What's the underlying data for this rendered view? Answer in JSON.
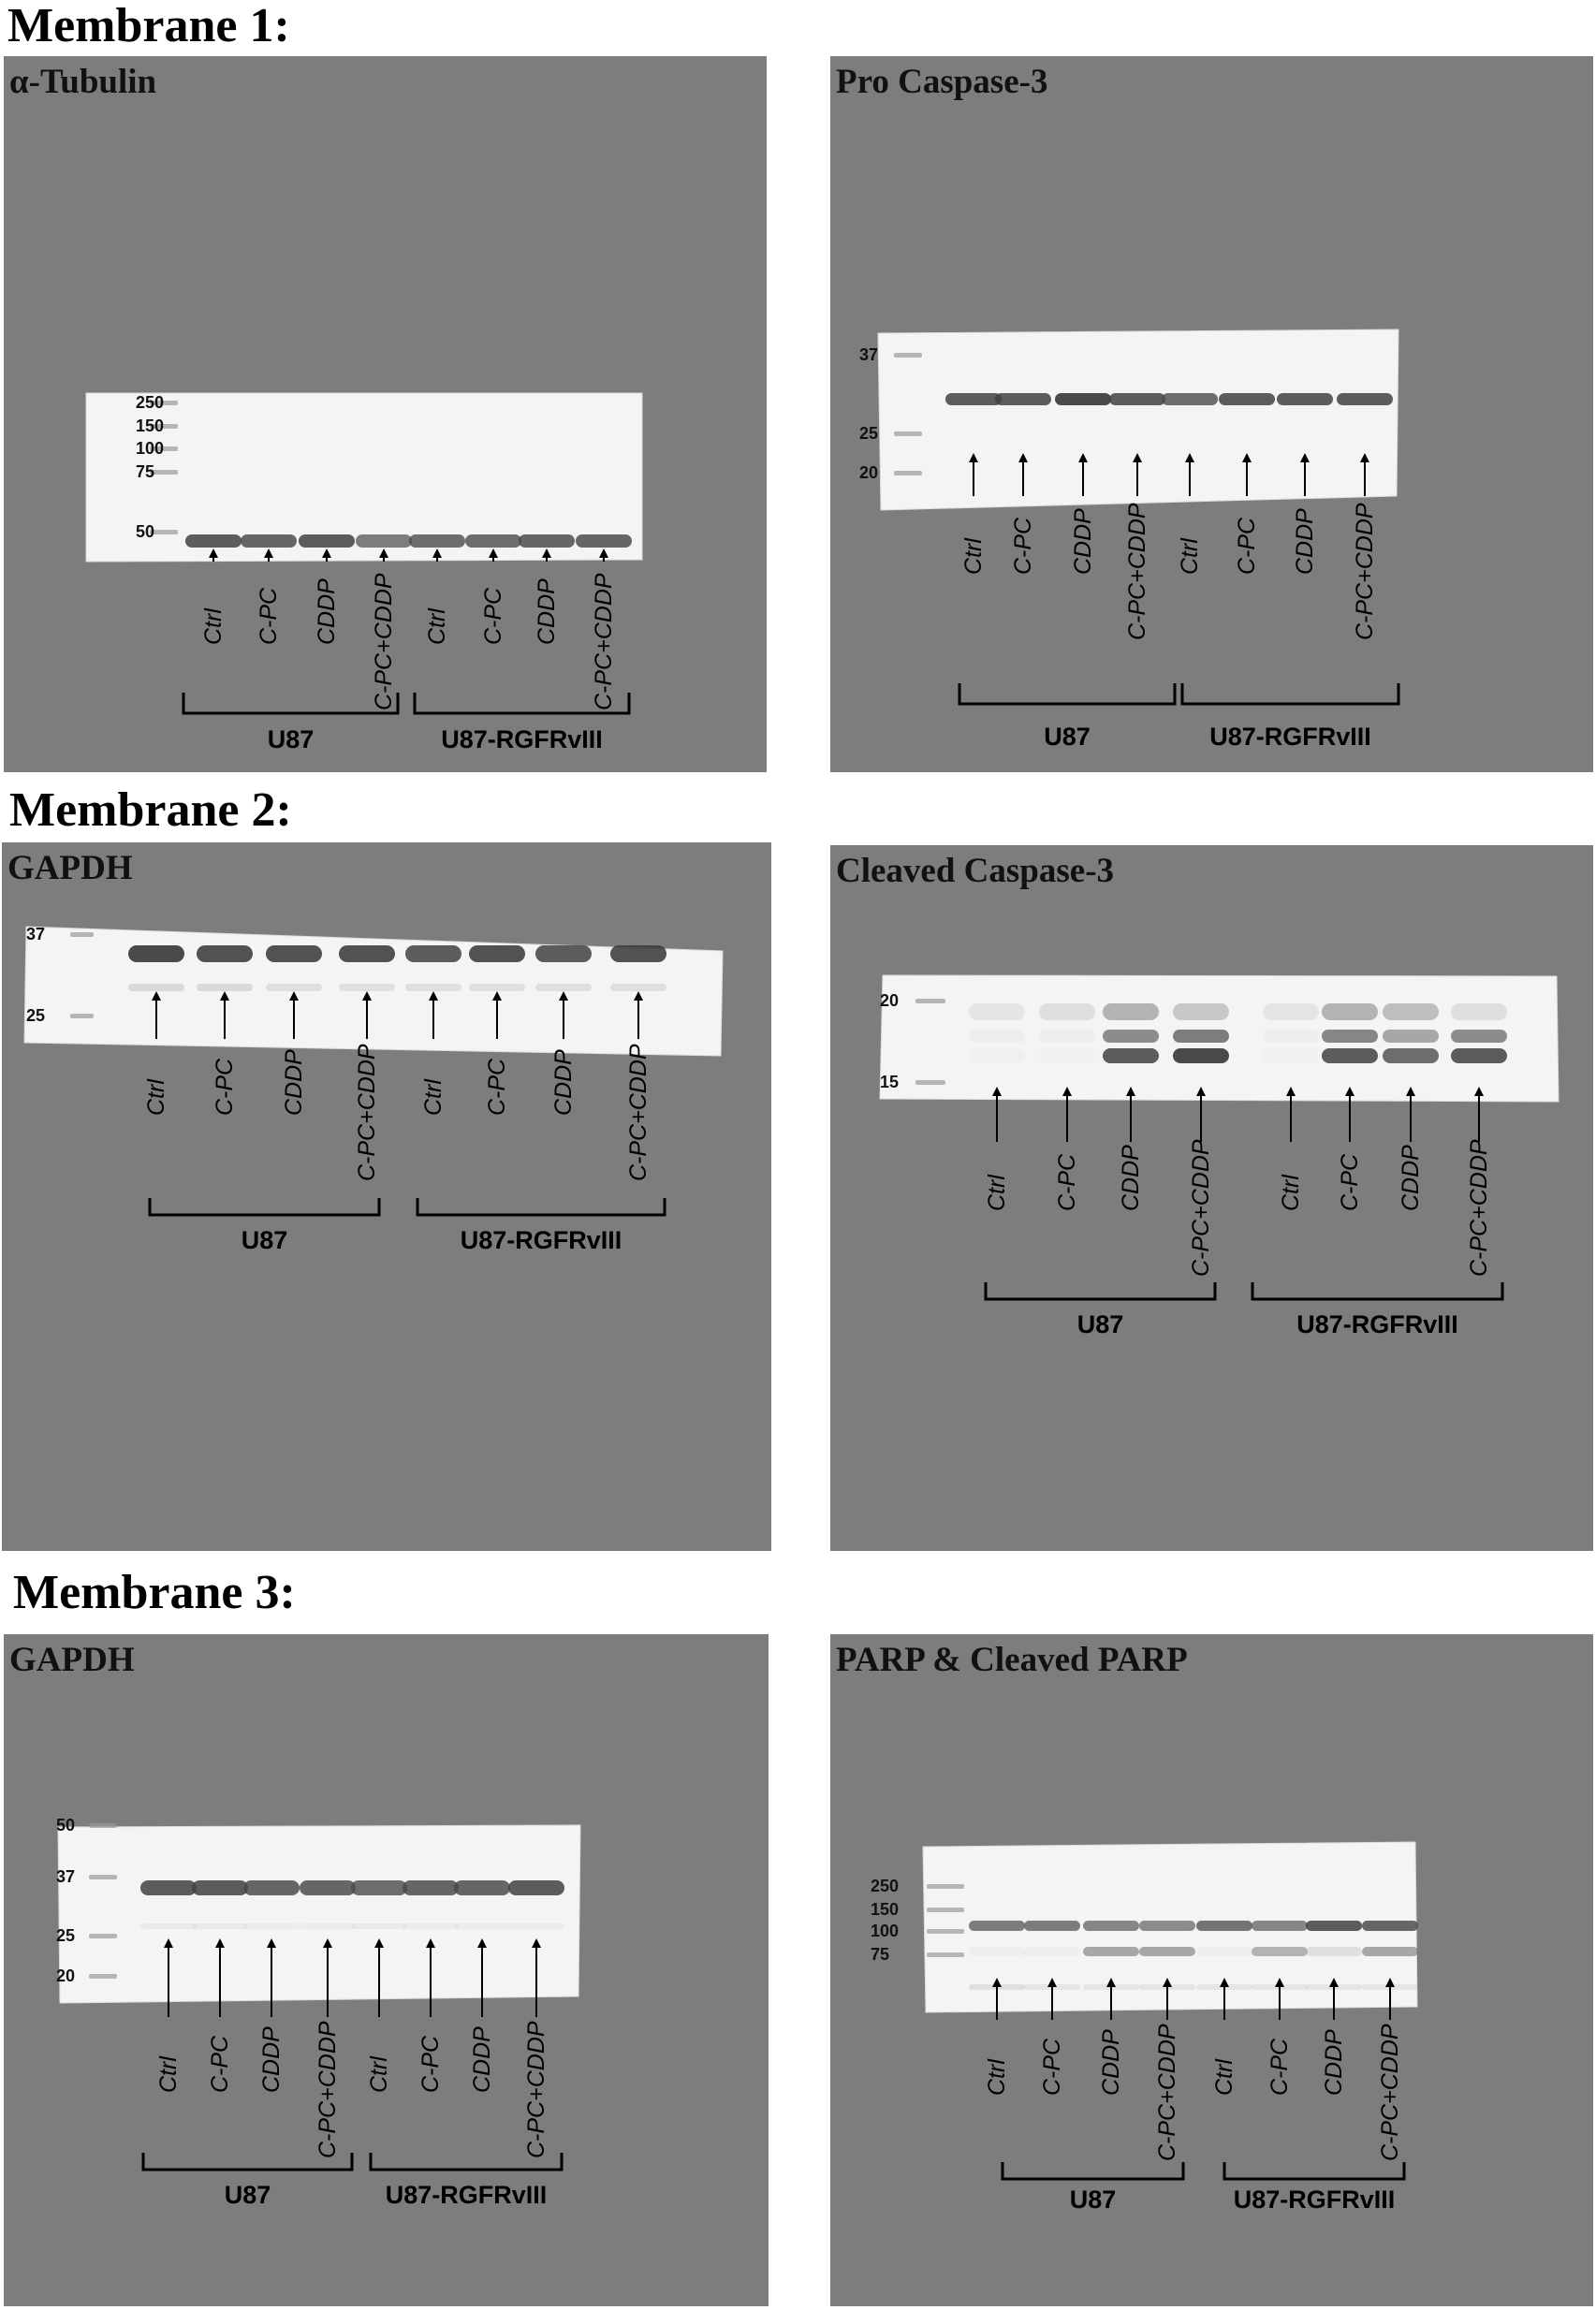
{
  "membranes": [
    {
      "title": "Membrane 1:",
      "panels": [
        {
          "title": "α-Tubulin",
          "markers": [
            "250",
            "150",
            "100",
            "75",
            "50"
          ],
          "lanes": [
            "Ctrl",
            "C-PC",
            "CDDP",
            "C-PC+CDDP",
            "Ctrl",
            "C-PC",
            "CDDP",
            "C-PC+CDDP"
          ],
          "groups": [
            "U87",
            "U87-RGFRvIII"
          ]
        },
        {
          "title": "Pro Caspase-3",
          "markers": [
            "37",
            "25",
            "20"
          ],
          "lanes": [
            "Ctrl",
            "C-PC",
            "CDDP",
            "C-PC+CDDP",
            "Ctrl",
            "C-PC",
            "CDDP",
            "C-PC+CDDP"
          ],
          "groups": [
            "U87",
            "U87-RGFRvIII"
          ]
        }
      ]
    },
    {
      "title": "Membrane 2:",
      "panels": [
        {
          "title": "GAPDH",
          "markers": [
            "37",
            "25"
          ],
          "lanes": [
            "Ctrl",
            "C-PC",
            "CDDP",
            "C-PC+CDDP",
            "Ctrl",
            "C-PC",
            "CDDP",
            "C-PC+CDDP"
          ],
          "groups": [
            "U87",
            "U87-RGFRvIII"
          ]
        },
        {
          "title": "Cleaved Caspase-3",
          "markers": [
            "20",
            "15"
          ],
          "lanes": [
            "Ctrl",
            "C-PC",
            "CDDP",
            "C-PC+CDDP",
            "Ctrl",
            "C-PC",
            "CDDP",
            "C-PC+CDDP"
          ],
          "groups": [
            "U87",
            "U87-RGFRvIII"
          ]
        }
      ]
    },
    {
      "title": "Membrane 3:",
      "panels": [
        {
          "title": "GAPDH",
          "markers": [
            "50",
            "37",
            "25",
            "20"
          ],
          "lanes": [
            "Ctrl",
            "C-PC",
            "CDDP",
            "C-PC+CDDP",
            "Ctrl",
            "C-PC",
            "CDDP",
            "C-PC+CDDP"
          ],
          "groups": [
            "U87",
            "U87-RGFRvIII"
          ]
        },
        {
          "title": "PARP & Cleaved PARP",
          "markers": [
            "250",
            "150",
            "100",
            "75"
          ],
          "lanes": [
            "Ctrl",
            "C-PC",
            "CDDP",
            "C-PC+CDDP",
            "Ctrl",
            "C-PC",
            "CDDP",
            "C-PC+CDDP"
          ],
          "groups": [
            "U87",
            "U87-RGFRvIII"
          ]
        }
      ]
    }
  ]
}
